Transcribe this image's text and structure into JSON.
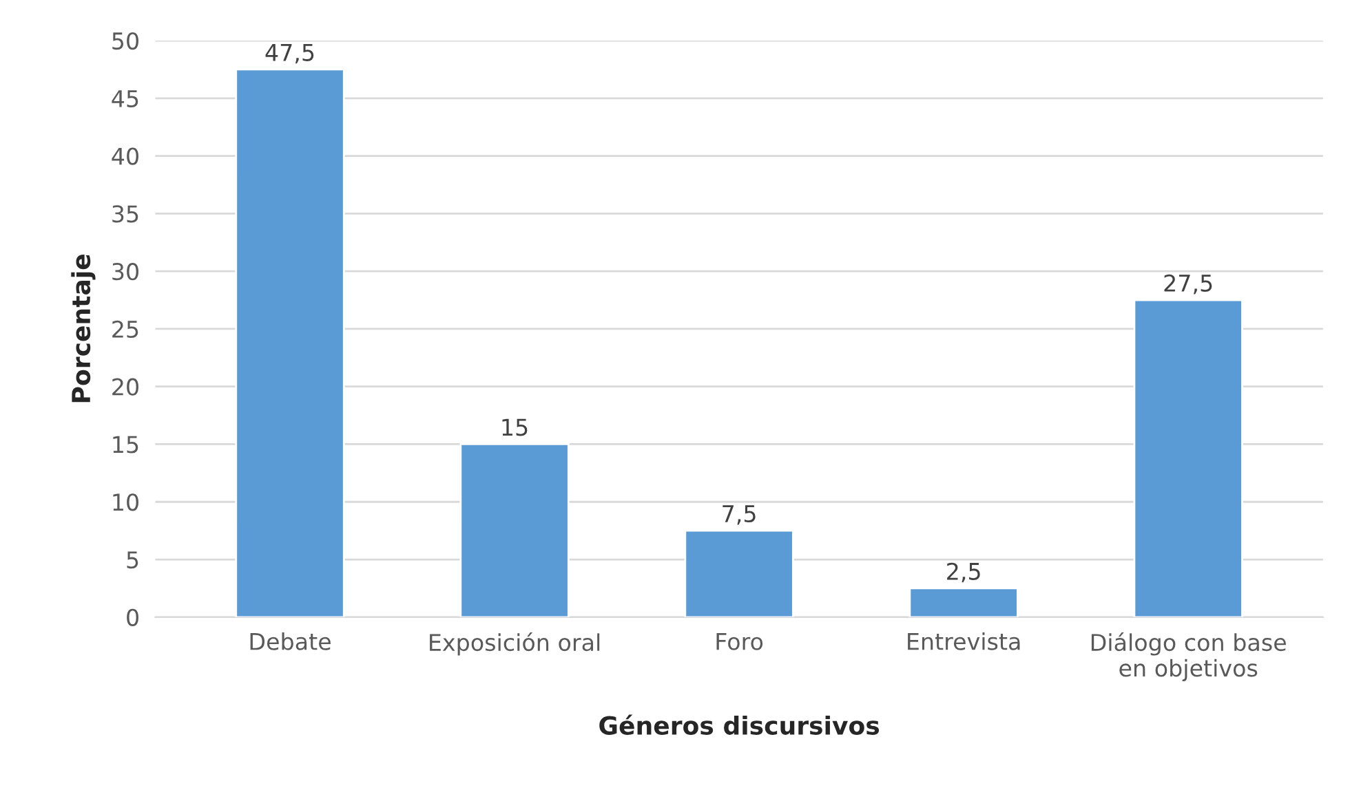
{
  "chart_data": {
    "type": "bar",
    "xlabel": "Géneros discursivos",
    "ylabel": "Porcentaje",
    "categories": [
      "Debate",
      "Exposición oral",
      "Foro",
      "Entrevista",
      "Diálogo con base\nen objetivos"
    ],
    "values": [
      47.5,
      15,
      7.5,
      2.5,
      27.5
    ],
    "value_labels": [
      "47,5",
      "15",
      "7,5",
      "2,5",
      "27,5"
    ],
    "color": "#5b9bd5",
    "ylim": [
      0,
      50
    ],
    "yticks": [
      0,
      5,
      10,
      15,
      20,
      25,
      30,
      35,
      40,
      45,
      50
    ],
    "grid": "y",
    "legend": false
  }
}
